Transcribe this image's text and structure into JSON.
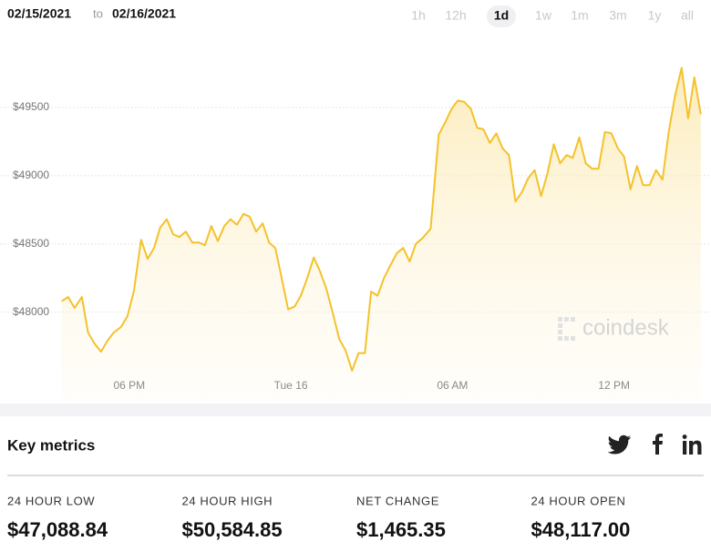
{
  "header": {
    "from": "02/15/2021",
    "to_label": "to",
    "to": "02/16/2021"
  },
  "ranges": [
    "1h",
    "12h",
    "1d",
    "1w",
    "1m",
    "3m",
    "1y",
    "all"
  ],
  "selected_range": "1d",
  "chart_data": {
    "type": "line",
    "color": "#f4c22b",
    "x": [
      15.49,
      15.73,
      15.97,
      16.24,
      16.47,
      16.71,
      16.95,
      17.19,
      17.42,
      17.69,
      17.93,
      18.17,
      18.44,
      18.68,
      18.92,
      19.15,
      19.39,
      19.63,
      19.86,
      20.1,
      20.34,
      20.58,
      20.81,
      21.05,
      21.29,
      21.53,
      21.76,
      22.0,
      22.24,
      22.47,
      22.71,
      22.95,
      23.19,
      23.42,
      23.66,
      23.9,
      24.14,
      24.37,
      24.61,
      24.85,
      25.08,
      25.32,
      25.56,
      25.8,
      26.03,
      26.27,
      26.51,
      26.75,
      26.98,
      27.22,
      27.46,
      27.69,
      27.93,
      28.17,
      28.41,
      28.64,
      28.88,
      29.19,
      29.49,
      29.73,
      29.97,
      30.2,
      30.44,
      30.68,
      30.92,
      31.15,
      31.39,
      31.63,
      31.86,
      32.1,
      32.34,
      32.58,
      32.81,
      33.05,
      33.29,
      33.53,
      33.76,
      34.0,
      34.24,
      34.47,
      34.71,
      34.95,
      35.19,
      35.42,
      35.66,
      35.9,
      36.14,
      36.37,
      36.61,
      36.85,
      37.08,
      37.32,
      37.56,
      37.8,
      38.03,
      38.27,
      38.51,
      38.75,
      38.98,
      39.22
    ],
    "values": [
      48080,
      48110,
      48030,
      48110,
      47850,
      47770,
      47710,
      47790,
      47850,
      47890,
      47970,
      48150,
      48530,
      48390,
      48470,
      48620,
      48680,
      48570,
      48550,
      48590,
      48510,
      48510,
      48490,
      48630,
      48520,
      48630,
      48680,
      48640,
      48720,
      48700,
      48590,
      48650,
      48510,
      48470,
      48250,
      48020,
      48040,
      48120,
      48250,
      48400,
      48300,
      48170,
      47990,
      47800,
      47720,
      47570,
      47700,
      47700,
      48150,
      48120,
      48250,
      48340,
      48430,
      48470,
      48370,
      48500,
      48540,
      48610,
      49300,
      49390,
      49490,
      49550,
      49540,
      49490,
      49350,
      49340,
      49240,
      49310,
      49200,
      49150,
      48810,
      48880,
      48980,
      49040,
      48850,
      49020,
      49230,
      49090,
      49150,
      49130,
      49280,
      49090,
      49050,
      49050,
      49320,
      49310,
      49200,
      49140,
      48900,
      49070,
      48930,
      48930,
      49040,
      48970,
      49320,
      49590,
      49790,
      49420,
      49720,
      49450
    ],
    "xlim": [
      13.2,
      39.6
    ],
    "ylim": [
      47350,
      50020
    ],
    "xticks": [
      {
        "value": 18,
        "label": "06 PM"
      },
      {
        "value": 24,
        "label": "Tue 16"
      },
      {
        "value": 30,
        "label": "06 AM"
      },
      {
        "value": 36,
        "label": "12 PM"
      }
    ],
    "yticks": [
      {
        "value": 48000,
        "label": "$48000"
      },
      {
        "value": 48500,
        "label": "$48500"
      },
      {
        "value": 49000,
        "label": "$49000"
      },
      {
        "value": 49500,
        "label": "$49500"
      }
    ],
    "grid": true,
    "watermark": "coindesk"
  },
  "key_metrics": {
    "title": "Key metrics",
    "items": [
      {
        "label": "24 HOUR LOW",
        "value": "$47,088.84"
      },
      {
        "label": "24 HOUR HIGH",
        "value": "$50,584.85"
      },
      {
        "label": "NET CHANGE",
        "value": "$1,465.35"
      },
      {
        "label": "24 HOUR OPEN",
        "value": "$48,117.00"
      }
    ]
  }
}
